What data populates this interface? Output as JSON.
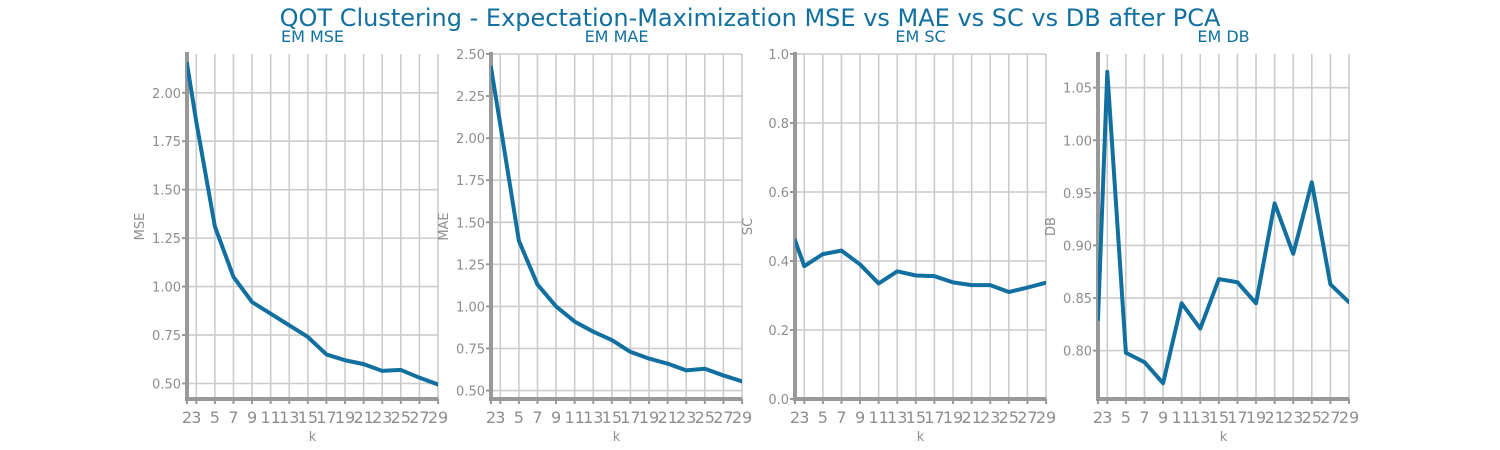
{
  "title": "QOT Clustering - Expectation-Maximization MSE vs MAE vs SC vs DB after PCA",
  "colors": {
    "line": "#1170a0",
    "grid": "#cccccc",
    "axis": "#999999",
    "text": "#8e8e8e",
    "title": "#1170a0"
  },
  "chart_data": [
    {
      "type": "line",
      "title": "EM MSE",
      "xlabel": "k",
      "ylabel": "MSE",
      "x": [
        2,
        3,
        5,
        7,
        9,
        11,
        13,
        15,
        17,
        19,
        21,
        23,
        25,
        27,
        29
      ],
      "values": [
        2.15,
        1.85,
        1.31,
        1.05,
        0.92,
        0.86,
        0.8,
        0.74,
        0.65,
        0.62,
        0.6,
        0.565,
        0.57,
        0.53,
        0.495
      ],
      "xlim": [
        2,
        29
      ],
      "ylim": [
        0.42,
        2.2
      ],
      "yticks": [
        "0.50",
        "0.75",
        "1.00",
        "1.25",
        "1.50",
        "1.75",
        "2.00"
      ],
      "grid": true
    },
    {
      "type": "line",
      "title": "EM MAE",
      "xlabel": "k",
      "ylabel": "MAE",
      "x": [
        2,
        3,
        5,
        7,
        9,
        11,
        13,
        15,
        17,
        19,
        21,
        23,
        25,
        27,
        29
      ],
      "values": [
        2.42,
        2.08,
        1.39,
        1.13,
        1.0,
        0.91,
        0.85,
        0.8,
        0.73,
        0.69,
        0.66,
        0.62,
        0.63,
        0.59,
        0.555
      ],
      "xlim": [
        2,
        29
      ],
      "ylim": [
        0.45,
        2.5
      ],
      "yticks": [
        "0.50",
        "0.75",
        "1.00",
        "1.25",
        "1.50",
        "1.75",
        "2.00",
        "2.25",
        "2.50"
      ],
      "grid": true
    },
    {
      "type": "line",
      "title": "EM SC",
      "xlabel": "k",
      "ylabel": "SC",
      "x": [
        2,
        3,
        5,
        7,
        9,
        11,
        13,
        15,
        17,
        19,
        21,
        23,
        25,
        27,
        29
      ],
      "values": [
        0.46,
        0.385,
        0.42,
        0.43,
        0.39,
        0.335,
        0.37,
        0.358,
        0.356,
        0.338,
        0.33,
        0.33,
        0.31,
        0.323,
        0.337
      ],
      "xlim": [
        2,
        29
      ],
      "ylim": [
        0,
        1
      ],
      "yticks": [
        "0.0",
        "0.2",
        "0.4",
        "0.6",
        "0.8",
        "1.0"
      ],
      "grid": true
    },
    {
      "type": "line",
      "title": "EM DB",
      "xlabel": "k",
      "ylabel": "DB",
      "x": [
        2,
        3,
        5,
        7,
        9,
        11,
        13,
        15,
        17,
        19,
        21,
        23,
        25,
        27,
        29
      ],
      "values": [
        0.83,
        1.065,
        0.798,
        0.789,
        0.769,
        0.845,
        0.821,
        0.868,
        0.865,
        0.845,
        0.94,
        0.892,
        0.96,
        0.863,
        0.846
      ],
      "xlim": [
        2,
        29
      ],
      "ylim": [
        0.754,
        1.082
      ],
      "yticks": [
        "0.80",
        "0.85",
        "0.90",
        "0.95",
        "1.00",
        "1.05"
      ],
      "grid": true
    }
  ]
}
